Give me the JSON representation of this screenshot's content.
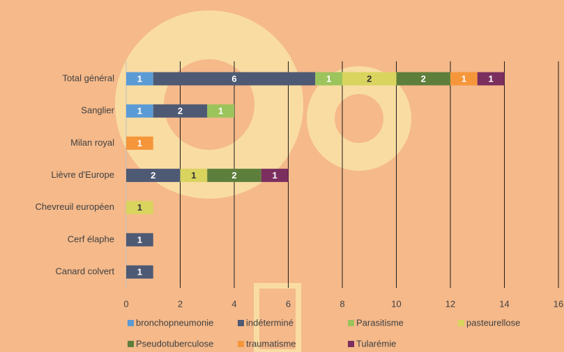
{
  "chart_data": {
    "type": "stacked-bar-horizontal",
    "categories": [
      "Total général",
      "Sanglier",
      "Milan royal",
      "Lièvre d'Europe",
      "Chevreuil européen",
      "Cerf élaphe",
      "Canard colvert"
    ],
    "series": [
      {
        "name": "bronchopneumonie",
        "color": "#5b9bd5",
        "label_color": "#ffffff",
        "values": [
          1,
          1,
          null,
          null,
          null,
          null,
          null
        ]
      },
      {
        "name": "indéterminé",
        "color": "#4e5a74",
        "label_color": "#ffffff",
        "values": [
          6,
          2,
          null,
          2,
          null,
          1,
          1
        ]
      },
      {
        "name": "Parasitisme",
        "color": "#9cc45c",
        "label_color": "#ffffff",
        "values": [
          1,
          1,
          null,
          null,
          null,
          null,
          null
        ]
      },
      {
        "name": "pasteurellose",
        "color": "#d9d45e",
        "label_color": "#333333",
        "values": [
          2,
          null,
          null,
          1,
          1,
          null,
          null
        ]
      },
      {
        "name": "Pseudotuberculose",
        "color": "#5e7f3c",
        "label_color": "#ffffff",
        "values": [
          2,
          null,
          null,
          2,
          null,
          null,
          null
        ]
      },
      {
        "name": "traumatisme",
        "color": "#f5963a",
        "label_color": "#ffffff",
        "values": [
          1,
          null,
          1,
          null,
          null,
          null,
          null
        ]
      },
      {
        "name": "Tularémie",
        "color": "#7a2f5e",
        "label_color": "#ffffff",
        "values": [
          1,
          null,
          null,
          1,
          null,
          null,
          null
        ]
      }
    ],
    "xlim": [
      0,
      16
    ],
    "xticks": [
      0,
      2,
      4,
      6,
      8,
      10,
      12,
      14,
      16
    ],
    "grid": true,
    "legend": "bottom"
  }
}
